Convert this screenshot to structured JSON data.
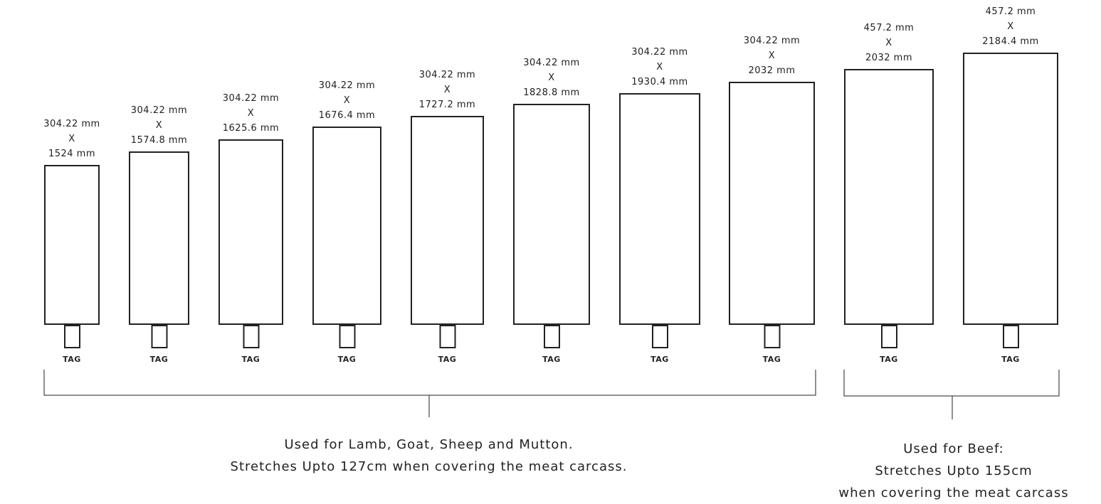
{
  "items": [
    {
      "width": "304.22 mm",
      "x": "X",
      "height": "1524 mm",
      "tag": "TAG"
    },
    {
      "width": "304.22 mm",
      "x": "X",
      "height": "1574.8 mm",
      "tag": "TAG"
    },
    {
      "width": "304.22 mm",
      "x": "X",
      "height": "1625.6 mm",
      "tag": "TAG"
    },
    {
      "width": "304.22 mm",
      "x": "X",
      "height": "1676.4 mm",
      "tag": "TAG"
    },
    {
      "width": "304.22 mm",
      "x": "X",
      "height": "1727.2 mm",
      "tag": "TAG"
    },
    {
      "width": "304.22 mm",
      "x": "X",
      "height": "1828.8 mm",
      "tag": "TAG"
    },
    {
      "width": "304.22 mm",
      "x": "X",
      "height": "1930.4 mm",
      "tag": "TAG"
    },
    {
      "width": "304.22 mm",
      "x": "X",
      "height": "2032 mm",
      "tag": "TAG"
    },
    {
      "width": "457.2 mm",
      "x": "X",
      "height": "2032 mm",
      "tag": "TAG"
    },
    {
      "width": "457.2 mm",
      "x": "X",
      "height": "2184.4 mm",
      "tag": "TAG"
    }
  ],
  "groups": {
    "lamb": {
      "line1": "Used for Lamb, Goat, Sheep and Mutton.",
      "line2": "Stretches Upto 127cm when covering the meat carcass."
    },
    "beef": {
      "line1": "Used for Beef:",
      "line2": "Stretches Upto 155cm",
      "line3": "when covering the meat carcass"
    }
  },
  "colors": {
    "stroke": "#222222",
    "text": "#222222",
    "background": "#ffffff"
  }
}
